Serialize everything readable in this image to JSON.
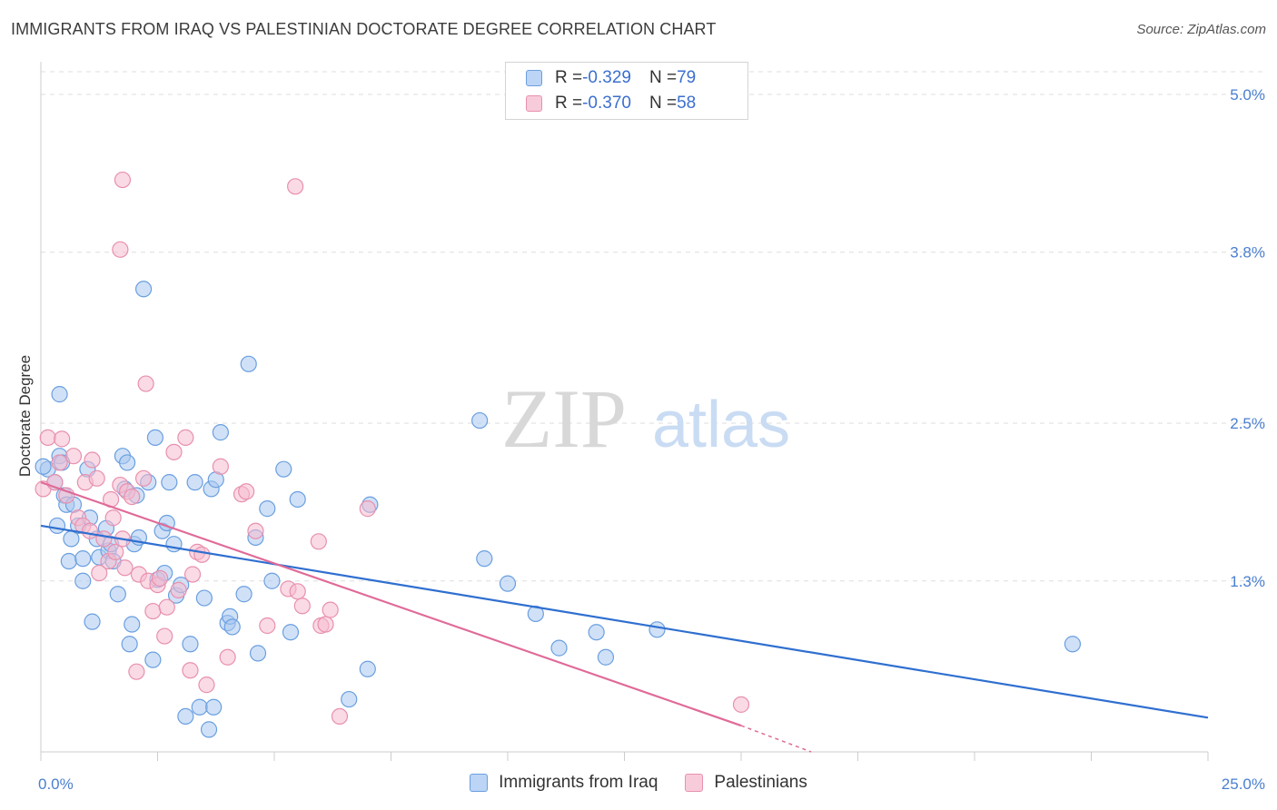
{
  "header": {
    "title": "IMMIGRANTS FROM IRAQ VS PALESTINIAN DOCTORATE DEGREE CORRELATION CHART",
    "source": "Source: ZipAtlas.com"
  },
  "legend": {
    "rows": [
      {
        "r_label": "R = ",
        "r_value": "-0.329",
        "n_label": "N = ",
        "n_value": "79"
      },
      {
        "r_label": "R = ",
        "r_value": "-0.370",
        "n_label": "N = ",
        "n_value": "58"
      }
    ]
  },
  "watermark": {
    "part1": "ZIP",
    "part2": "atlas"
  },
  "colors": {
    "blue_fill": "#aac8f0",
    "blue_stroke": "#6a9fe0",
    "blue_line": "#2f6fd0",
    "pink_fill": "#f6bcd0",
    "pink_stroke": "#e890ae",
    "pink_line": "#e06a98",
    "grid": "#dddddd",
    "axis_text": "#4a7fd0"
  },
  "chart_data": {
    "type": "scatter",
    "title": "IMMIGRANTS FROM IRAQ VS PALESTINIAN DOCTORATE DEGREE CORRELATION CHART",
    "xlabel": "",
    "ylabel": "Doctorate Degree",
    "xlim": [
      0,
      25
    ],
    "ylim": [
      0,
      5.2
    ],
    "x_tick_labels": [
      "0.0%",
      "25.0%"
    ],
    "y_ticks": [
      1.3,
      2.5,
      3.8,
      5.0
    ],
    "y_tick_labels": [
      "1.3%",
      "2.5%",
      "3.8%",
      "5.0%"
    ],
    "legend_position": "top-center",
    "series": [
      {
        "name": "Immigrants from Iraq",
        "r": "-0.329",
        "n": "79",
        "trend": {
          "x": [
            0,
            25
          ],
          "y": [
            1.72,
            0.26
          ]
        },
        "points": [
          [
            0.15,
            2.15
          ],
          [
            0.3,
            2.05
          ],
          [
            0.35,
            1.72
          ],
          [
            0.4,
            2.25
          ],
          [
            0.45,
            2.2
          ],
          [
            0.4,
            2.72
          ],
          [
            0.5,
            1.95
          ],
          [
            0.55,
            1.88
          ],
          [
            0.6,
            1.45
          ],
          [
            0.65,
            1.62
          ],
          [
            0.7,
            1.88
          ],
          [
            0.8,
            1.72
          ],
          [
            0.9,
            1.3
          ],
          [
            0.9,
            1.47
          ],
          [
            1.0,
            2.15
          ],
          [
            1.05,
            1.78
          ],
          [
            1.1,
            0.99
          ],
          [
            1.2,
            1.62
          ],
          [
            1.25,
            1.48
          ],
          [
            1.4,
            1.7
          ],
          [
            1.45,
            1.53
          ],
          [
            1.5,
            1.58
          ],
          [
            1.55,
            1.45
          ],
          [
            1.65,
            1.2
          ],
          [
            1.75,
            2.25
          ],
          [
            1.8,
            2.0
          ],
          [
            1.85,
            2.2
          ],
          [
            1.9,
            0.82
          ],
          [
            1.95,
            0.97
          ],
          [
            2.0,
            1.58
          ],
          [
            2.05,
            1.95
          ],
          [
            2.1,
            1.63
          ],
          [
            2.2,
            3.52
          ],
          [
            2.3,
            2.05
          ],
          [
            2.4,
            0.7
          ],
          [
            2.45,
            2.39
          ],
          [
            2.5,
            1.31
          ],
          [
            2.6,
            1.68
          ],
          [
            2.65,
            1.36
          ],
          [
            2.7,
            1.74
          ],
          [
            2.75,
            2.05
          ],
          [
            2.85,
            1.58
          ],
          [
            2.9,
            1.19
          ],
          [
            3.0,
            1.27
          ],
          [
            3.1,
            0.27
          ],
          [
            3.2,
            0.82
          ],
          [
            3.3,
            2.05
          ],
          [
            3.4,
            0.34
          ],
          [
            3.5,
            1.17
          ],
          [
            3.6,
            0.17
          ],
          [
            3.65,
            2.0
          ],
          [
            3.7,
            0.34
          ],
          [
            3.75,
            2.07
          ],
          [
            3.85,
            2.43
          ],
          [
            4.0,
            0.98
          ],
          [
            4.05,
            1.03
          ],
          [
            4.1,
            0.95
          ],
          [
            4.35,
            1.2
          ],
          [
            4.45,
            2.95
          ],
          [
            4.6,
            1.63
          ],
          [
            4.65,
            0.75
          ],
          [
            4.85,
            1.85
          ],
          [
            4.95,
            1.3
          ],
          [
            5.2,
            2.15
          ],
          [
            5.35,
            0.91
          ],
          [
            5.5,
            1.92
          ],
          [
            6.6,
            0.4
          ],
          [
            7.0,
            0.63
          ],
          [
            7.05,
            1.88
          ],
          [
            9.4,
            2.52
          ],
          [
            9.5,
            1.47
          ],
          [
            10.0,
            1.28
          ],
          [
            10.6,
            1.05
          ],
          [
            11.1,
            0.79
          ],
          [
            11.9,
            0.91
          ],
          [
            12.1,
            0.72
          ],
          [
            13.2,
            0.93
          ],
          [
            22.1,
            0.82
          ],
          [
            0.05,
            2.17
          ]
        ]
      },
      {
        "name": "Palestinians",
        "r": "-0.370",
        "n": "58",
        "trend": {
          "x": [
            0,
            15.0
          ],
          "y": [
            2.05,
            0.2
          ]
        },
        "trend_dashed": {
          "x": [
            15.0,
            16.5
          ],
          "y": [
            0.2,
            0.0
          ]
        },
        "points": [
          [
            0.05,
            2.0
          ],
          [
            0.15,
            2.39
          ],
          [
            0.3,
            2.05
          ],
          [
            0.4,
            2.2
          ],
          [
            0.45,
            2.38
          ],
          [
            0.55,
            1.95
          ],
          [
            0.7,
            2.25
          ],
          [
            0.8,
            1.78
          ],
          [
            0.9,
            1.72
          ],
          [
            0.95,
            2.05
          ],
          [
            1.05,
            1.68
          ],
          [
            1.1,
            2.22
          ],
          [
            1.2,
            2.08
          ],
          [
            1.25,
            1.36
          ],
          [
            1.35,
            1.62
          ],
          [
            1.45,
            1.45
          ],
          [
            1.5,
            1.92
          ],
          [
            1.55,
            1.78
          ],
          [
            1.6,
            1.52
          ],
          [
            1.7,
            2.03
          ],
          [
            1.75,
            1.62
          ],
          [
            1.8,
            1.4
          ],
          [
            1.85,
            1.98
          ],
          [
            1.95,
            1.94
          ],
          [
            2.05,
            0.61
          ],
          [
            2.1,
            1.35
          ],
          [
            2.2,
            2.08
          ],
          [
            2.25,
            2.8
          ],
          [
            2.3,
            1.3
          ],
          [
            2.4,
            1.07
          ],
          [
            2.5,
            1.27
          ],
          [
            2.55,
            1.32
          ],
          [
            2.65,
            0.88
          ],
          [
            2.7,
            1.1
          ],
          [
            2.85,
            2.28
          ],
          [
            2.95,
            1.23
          ],
          [
            3.1,
            2.39
          ],
          [
            3.2,
            0.62
          ],
          [
            3.25,
            1.35
          ],
          [
            3.35,
            1.52
          ],
          [
            3.45,
            1.5
          ],
          [
            3.55,
            0.51
          ],
          [
            3.85,
            2.17
          ],
          [
            4.0,
            0.72
          ],
          [
            4.3,
            1.96
          ],
          [
            4.4,
            1.98
          ],
          [
            4.6,
            1.68
          ],
          [
            4.85,
            0.96
          ],
          [
            5.3,
            1.24
          ],
          [
            5.5,
            1.22
          ],
          [
            5.6,
            1.11
          ],
          [
            5.95,
            1.6
          ],
          [
            6.0,
            0.96
          ],
          [
            6.1,
            0.97
          ],
          [
            6.2,
            1.08
          ],
          [
            6.4,
            0.27
          ],
          [
            7.0,
            1.85
          ],
          [
            15.0,
            0.36
          ]
        ],
        "extra_points": [
          [
            1.75,
            4.35
          ],
          [
            1.7,
            3.82
          ],
          [
            5.45,
            4.3
          ]
        ]
      }
    ]
  }
}
